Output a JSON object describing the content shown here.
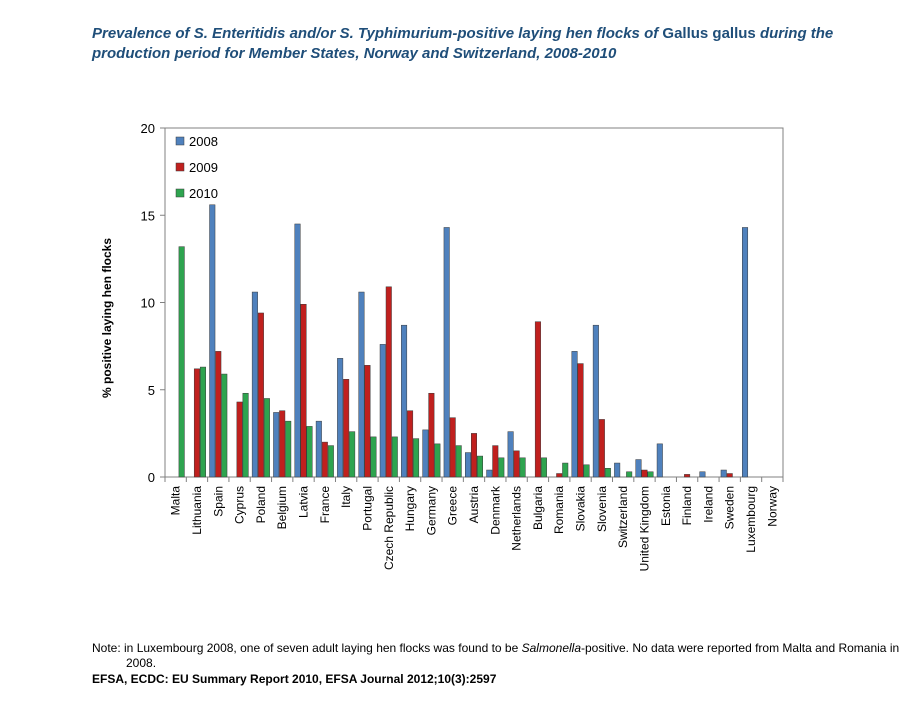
{
  "title": {
    "part1": "Prevalence of S. Enteritidis and/or S. Typhimurium-positive laying hen flocks of ",
    "part2": "Gallus gallus",
    "part3": " during the production period for Member States, Norway and Switzerland, 2008-2010"
  },
  "note": {
    "part1": "Note: in Luxembourg 2008, one of seven adult laying hen flocks was found to be ",
    "italic": "Salmonella",
    "part2": "-positive. No data were reported from Malta and Romania in 2008."
  },
  "source": "EFSA, ECDC: EU Summary Report 2010, EFSA Journal 2012;10(3):2597",
  "colors": {
    "2008": "#4F81BD",
    "2009": "#C0201E",
    "2010": "#2EA44F"
  },
  "chart_data": {
    "type": "bar",
    "title": "",
    "xlabel": "",
    "ylabel": "%  positive laying hen flocks",
    "ylim": [
      0,
      20
    ],
    "yticks": [
      0,
      5,
      10,
      15,
      20
    ],
    "grid": false,
    "legend_position": "top-left",
    "categories": [
      "Malta",
      "Lithuania",
      "Spain",
      "Cyprus",
      "Poland",
      "Belgium",
      "Latvia",
      "France",
      "Italy",
      "Portugal",
      "Czech Republic",
      "Hungary",
      "Germany",
      "Greece",
      "Austria",
      "Denmark",
      "Netherlands",
      "Bulgaria",
      "Romania",
      "Slovakia",
      "Slovenia",
      "Switzerland",
      "United Kingdom",
      "Estonia",
      "Finland",
      "Ireland",
      "Sweden",
      "Luxembourg",
      "Norway"
    ],
    "series": [
      {
        "name": "2008",
        "values": [
          null,
          0,
          15.6,
          0,
          10.6,
          3.7,
          14.5,
          3.2,
          6.8,
          10.6,
          7.6,
          8.7,
          2.7,
          14.3,
          1.4,
          0.4,
          2.6,
          0,
          null,
          7.2,
          8.7,
          0.8,
          1.0,
          1.9,
          0,
          0.3,
          0.4,
          14.3,
          0
        ]
      },
      {
        "name": "2009",
        "values": [
          0,
          6.2,
          7.2,
          4.3,
          9.4,
          3.8,
          9.9,
          2.0,
          5.6,
          6.4,
          10.9,
          3.8,
          4.8,
          3.4,
          2.5,
          1.8,
          1.5,
          8.9,
          0.2,
          6.5,
          3.3,
          0,
          0.4,
          0,
          0.15,
          0,
          0.2,
          0,
          0
        ]
      },
      {
        "name": "2010",
        "values": [
          13.2,
          6.3,
          5.9,
          4.8,
          4.5,
          3.2,
          2.9,
          1.8,
          2.6,
          2.3,
          2.3,
          2.2,
          1.9,
          1.8,
          1.2,
          1.1,
          1.1,
          1.1,
          0.8,
          0.7,
          0.5,
          0.3,
          0.3,
          0,
          0,
          0,
          0,
          0,
          0
        ]
      }
    ]
  }
}
